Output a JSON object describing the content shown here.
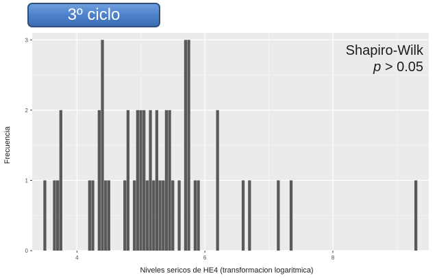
{
  "badge": {
    "label": "3º ciclo"
  },
  "annotation": {
    "line1": "Shapiro-Wilk",
    "p_symbol": "p",
    "p_rest": " > 0.05"
  },
  "colors": {
    "panel": "#ebebeb",
    "grid_major": "#ffffff",
    "grid_minor": "#f5f5f5",
    "bar": "#595959",
    "badge": "#4a7fc8"
  },
  "chart_data": {
    "type": "bar",
    "title": "",
    "xlabel": "Niveles sericos de HE4 (transformacion logaritmica)",
    "ylabel": "Frecuencia",
    "xlim": [
      3.3,
      9.5
    ],
    "ylim": [
      0,
      3.1
    ],
    "xticks": [
      4,
      6,
      8
    ],
    "yticks": [
      0,
      1,
      2,
      3
    ],
    "grid": true,
    "bin_width": 0.05,
    "x": [
      3.5,
      3.65,
      3.7,
      3.75,
      4.2,
      4.25,
      4.35,
      4.4,
      4.45,
      4.5,
      4.75,
      4.8,
      4.9,
      4.95,
      5.0,
      5.05,
      5.1,
      5.15,
      5.2,
      5.25,
      5.3,
      5.35,
      5.4,
      5.45,
      5.5,
      5.6,
      5.7,
      5.75,
      5.85,
      5.9,
      6.2,
      6.6,
      6.7,
      7.15,
      7.35,
      9.3
    ],
    "values": [
      1,
      1,
      1,
      2,
      1,
      1,
      2,
      3,
      1,
      1,
      1,
      2,
      1,
      2,
      2,
      2,
      1,
      2,
      1,
      2,
      1,
      1,
      2,
      2,
      1,
      1,
      3,
      3,
      1,
      1,
      2,
      1,
      1,
      1,
      1,
      1
    ]
  }
}
